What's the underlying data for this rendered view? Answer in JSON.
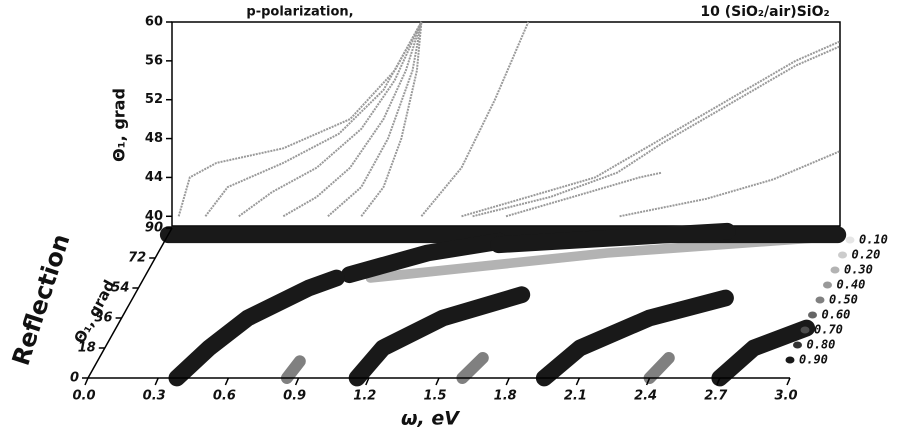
{
  "chart_data": [
    {
      "type": "line",
      "title": "p-polarization,",
      "subtitle": "10 (SiO₂/air)SiO₂",
      "ylabel": "Θ₁, grad",
      "xlim": [
        0,
        3
      ],
      "ylim": [
        39,
        60
      ],
      "yticks": [
        40,
        44,
        48,
        52,
        56,
        60
      ],
      "color": "#9a9a9a",
      "series": [
        {
          "x": [
            0.03,
            0.08,
            0.2,
            0.5,
            0.8,
            1.0,
            1.12
          ],
          "values": [
            40,
            44,
            45.5,
            47,
            50,
            55,
            60
          ]
        },
        {
          "x": [
            0.15,
            0.25,
            0.5,
            0.75,
            0.95,
            1.12
          ],
          "values": [
            40,
            43,
            45.5,
            48.5,
            53,
            60
          ]
        },
        {
          "x": [
            0.3,
            0.45,
            0.65,
            0.85,
            1.0,
            1.12
          ],
          "values": [
            40,
            42.5,
            45,
            49,
            54,
            60
          ]
        },
        {
          "x": [
            0.5,
            0.65,
            0.8,
            0.95,
            1.05,
            1.12
          ],
          "values": [
            40,
            42,
            45,
            50,
            55,
            60
          ]
        },
        {
          "x": [
            0.7,
            0.85,
            0.97,
            1.08,
            1.12
          ],
          "values": [
            40,
            43,
            48,
            55,
            60
          ]
        },
        {
          "x": [
            0.85,
            0.95,
            1.03,
            1.1,
            1.12
          ],
          "values": [
            40,
            43,
            48,
            55,
            60
          ]
        },
        {
          "x": [
            1.12,
            1.3,
            1.45,
            1.6
          ],
          "values": [
            40,
            45,
            52,
            60
          ]
        },
        {
          "x": [
            1.3,
            1.6,
            1.9,
            2.2,
            2.5,
            2.8,
            3.0
          ],
          "values": [
            40,
            42,
            44,
            48,
            52,
            56,
            58
          ]
        },
        {
          "x": [
            1.35,
            1.7,
            2.0,
            2.2,
            2.5,
            2.8,
            3.0
          ],
          "values": [
            40,
            42,
            44.5,
            47.5,
            51.5,
            55.5,
            57.5
          ]
        },
        {
          "x": [
            1.5,
            1.8,
            2.1,
            2.2
          ],
          "values": [
            40,
            42,
            44,
            44.5
          ]
        },
        {
          "x": [
            2.01,
            2.4,
            2.7,
            3.0
          ],
          "values": [
            40,
            41.8,
            43.8,
            46.7
          ]
        }
      ]
    },
    {
      "type": "contour",
      "xlabel": "ω, eV",
      "ylabel": "Θ₁, grad",
      "zlabel": "Reflection",
      "xlim": [
        0,
        3
      ],
      "ylim": [
        0,
        90
      ],
      "xticks": [
        {
          "value": 0,
          "label": "0.0"
        },
        0.3,
        0.6,
        0.9,
        1.2,
        1.5,
        1.8,
        2.1,
        2.4,
        2.7,
        {
          "value": 3,
          "label": "3.0"
        }
      ],
      "yticks": [
        0,
        18,
        36,
        54,
        72,
        90
      ],
      "levels": [
        {
          "value": 0.1,
          "label": "0.10"
        },
        {
          "value": 0.2,
          "label": "0.20"
        },
        {
          "value": 0.3,
          "label": "0.30"
        },
        {
          "value": 0.4,
          "label": "0.40"
        },
        {
          "value": 0.5,
          "label": "0.50"
        },
        {
          "value": 0.6,
          "label": "0.60"
        },
        {
          "value": 0.7,
          "label": "0.70"
        },
        {
          "value": 0.8,
          "label": "0.80"
        },
        {
          "value": 0.9,
          "label": "0.90"
        }
      ],
      "bands": [
        {
          "level": 0.3,
          "x": [
            1.0,
            2.0,
            3.0
          ],
          "values": [
            60,
            75,
            85
          ]
        },
        {
          "level": 0.9,
          "x": [
            0.0,
            3.0
          ],
          "values": [
            86,
            86
          ]
        },
        {
          "level": 0.9,
          "x": [
            0.9,
            1.2,
            1.5
          ],
          "values": [
            62,
            75,
            82
          ]
        },
        {
          "level": 0.9,
          "x": [
            1.5,
            2.0,
            2.5
          ],
          "values": [
            80,
            84,
            88
          ]
        },
        {
          "level": 0.9,
          "x": [
            0.38,
            0.45,
            0.55,
            0.75,
            0.85
          ],
          "values": [
            0,
            18,
            36,
            54,
            60
          ]
        },
        {
          "level": 0.9,
          "x": [
            1.15,
            1.2,
            1.4,
            1.7
          ],
          "values": [
            0,
            18,
            36,
            50
          ]
        },
        {
          "level": 0.9,
          "x": [
            1.95,
            2.05,
            2.3,
            2.6
          ],
          "values": [
            0,
            18,
            36,
            48
          ]
        },
        {
          "level": 0.9,
          "x": [
            2.7,
            2.8,
            3.0
          ],
          "values": [
            0,
            18,
            30
          ]
        },
        {
          "level": 0.5,
          "x": [
            0.85,
            0.87
          ],
          "values": [
            0,
            10
          ]
        },
        {
          "level": 0.5,
          "x": [
            1.6,
            1.65
          ],
          "values": [
            0,
            12
          ]
        },
        {
          "level": 0.5,
          "x": [
            2.4,
            2.45
          ],
          "values": [
            0,
            12
          ]
        }
      ]
    }
  ]
}
